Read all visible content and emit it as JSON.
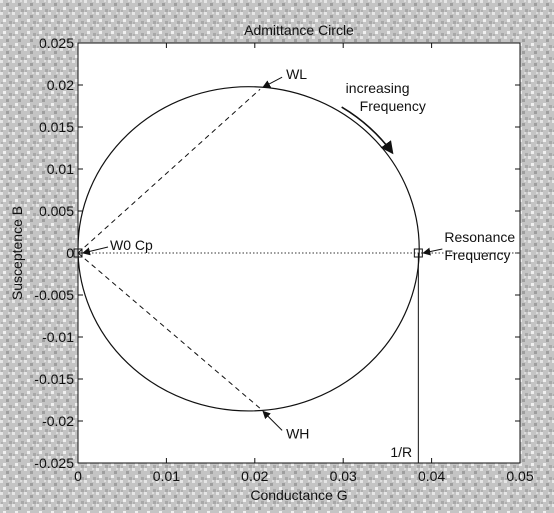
{
  "chart_data": {
    "type": "line",
    "title": "Admittance Circle",
    "xlabel": "Conductance G",
    "ylabel": "Susceptence B",
    "xlim": [
      0,
      0.05
    ],
    "ylim": [
      -0.025,
      0.025
    ],
    "x_ticks": [
      "0",
      "0.01",
      "0.02",
      "0.03",
      "0.04",
      "0.05"
    ],
    "y_ticks": [
      "-0.025",
      "-0.02",
      "-0.015",
      "-0.01",
      "-0.005",
      "0",
      "0.005",
      "0.01",
      "0.015",
      "0.02",
      "0.025"
    ],
    "grid": false,
    "circle": {
      "center": [
        0.0193,
        0.0005
      ],
      "radius": 0.0193
    },
    "points": {
      "WL": [
        0.0206,
        0.0195
      ],
      "WH": [
        0.0206,
        -0.0185
      ],
      "W0Cp": [
        0.0,
        0.0
      ],
      "resonance": [
        0.0385,
        0.0
      ],
      "inv_r": [
        0.0385,
        -0.025
      ]
    },
    "annotations": {
      "wl": "WL",
      "wh": "WH",
      "w0cp": "W0 Cp",
      "increasing_line1": "increasing",
      "increasing_line2": "Frequency",
      "resonance_line1": "Resonance",
      "resonance_line2": "Frequency",
      "inv_r": "1/R"
    }
  }
}
